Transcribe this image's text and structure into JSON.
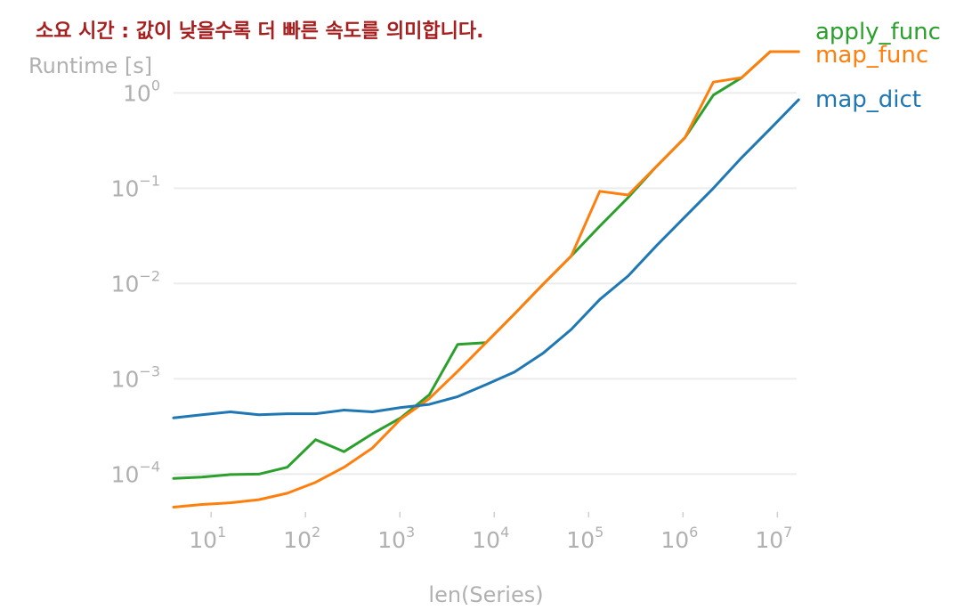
{
  "chart_data": {
    "type": "line",
    "title": "소요 시간 : 값이 낮을수록 더 빠른 속도를 의미합니다.",
    "xlabel": "len(Series)",
    "ylabel": "Runtime [s]",
    "xscale": "log",
    "yscale": "log",
    "xlim": [
      4,
      16000000
    ],
    "ylim": [
      4e-05,
      4
    ],
    "grid": "horizontal",
    "legend": "right, end of lines",
    "xticks": [
      {
        "value": 10,
        "base": "10",
        "exp": "1"
      },
      {
        "value": 100,
        "base": "10",
        "exp": "2"
      },
      {
        "value": 1000,
        "base": "10",
        "exp": "3"
      },
      {
        "value": 10000,
        "base": "10",
        "exp": "4"
      },
      {
        "value": 100000,
        "base": "10",
        "exp": "5"
      },
      {
        "value": 1000000,
        "base": "10",
        "exp": "6"
      },
      {
        "value": 10000000,
        "base": "10",
        "exp": "7"
      }
    ],
    "yticks": [
      {
        "value": 0.0001,
        "base": "10",
        "exp": "−4"
      },
      {
        "value": 0.001,
        "base": "10",
        "exp": "−3"
      },
      {
        "value": 0.01,
        "base": "10",
        "exp": "−2"
      },
      {
        "value": 0.1,
        "base": "10",
        "exp": "−1"
      },
      {
        "value": 1,
        "base": "10",
        "exp": "0"
      }
    ],
    "x": [
      4,
      8,
      16,
      32,
      64,
      128,
      256,
      512,
      1024,
      2048,
      4096,
      8192,
      16384,
      32768,
      65536,
      131072,
      262144,
      524288,
      1048576,
      2097152,
      4194304,
      8388608,
      16777216
    ],
    "series": [
      {
        "name": "apply_func",
        "color": "#2ca02c",
        "values": [
          9e-05,
          9.3e-05,
          9.9e-05,
          0.0001,
          0.000118,
          0.00023,
          0.000172,
          0.000265,
          0.00039,
          0.00068,
          0.0023,
          0.0024,
          0.0048,
          0.0098,
          0.0195,
          0.04,
          0.08,
          0.17,
          0.34,
          0.95,
          1.45,
          3.7,
          7.6
        ]
      },
      {
        "name": "map_func",
        "color": "#ff7f0e",
        "values": [
          4.5e-05,
          4.8e-05,
          5e-05,
          5.4e-05,
          6.3e-05,
          8.2e-05,
          0.000118,
          0.000188,
          0.00038,
          0.00062,
          0.0012,
          0.0024,
          0.0048,
          0.0098,
          0.0195,
          0.093,
          0.085,
          0.17,
          0.34,
          1.3,
          1.45,
          3.0,
          5.6
        ]
      },
      {
        "name": "map_dict",
        "color": "#1f77b4",
        "values": [
          0.00039,
          0.00042,
          0.00045,
          0.00042,
          0.00043,
          0.00043,
          0.00047,
          0.00045,
          0.0005,
          0.00054,
          0.00065,
          0.00087,
          0.00118,
          0.00185,
          0.0033,
          0.0068,
          0.012,
          0.025,
          0.05,
          0.1,
          0.21,
          0.42,
          0.85
        ]
      }
    ]
  }
}
